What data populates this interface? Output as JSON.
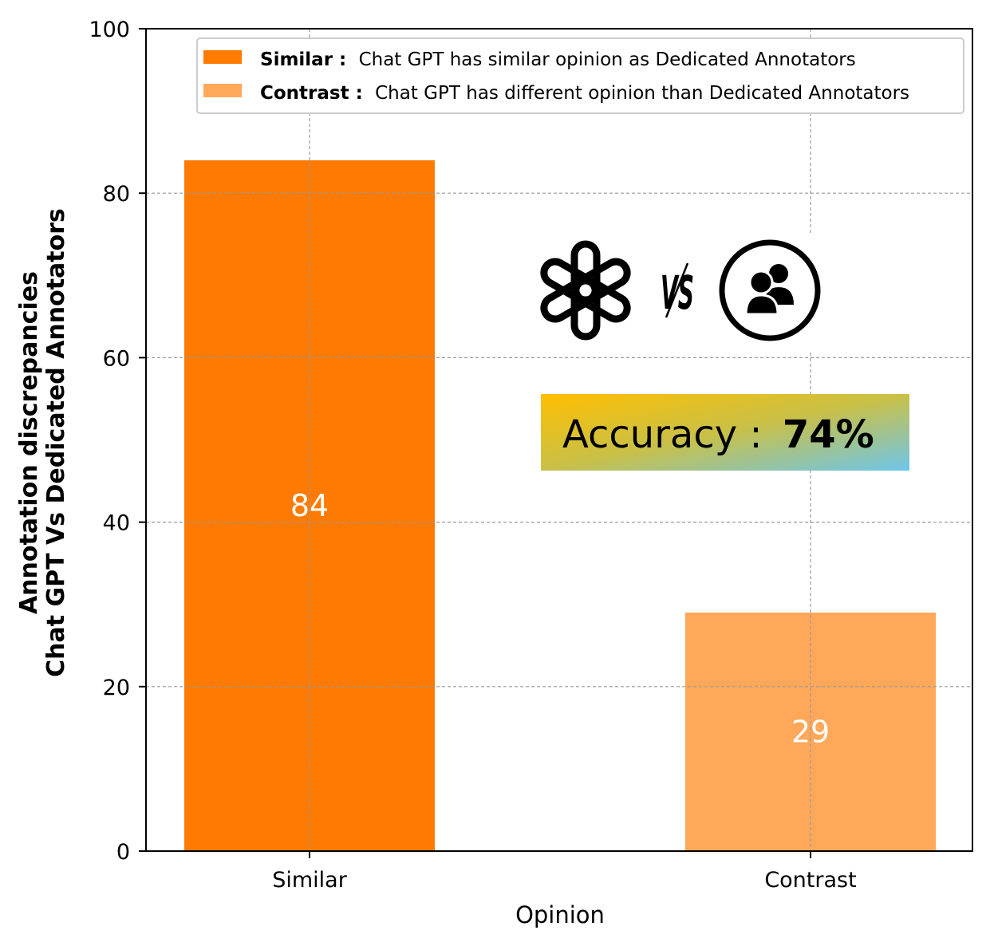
{
  "chart_data": {
    "type": "bar",
    "categories": [
      "Similar",
      "Contrast"
    ],
    "values": [
      84,
      29
    ],
    "colors": [
      "#ff7a00",
      "#ffa85a"
    ],
    "data_labels": [
      "84",
      "29"
    ],
    "xlabel": "Opinion",
    "ylabel_lines": [
      "Annotation discrepancies",
      "Chat GPT Vs Dedicated Annotators"
    ],
    "ylim": [
      0,
      100
    ],
    "yticks": [
      0,
      20,
      40,
      60,
      80,
      100
    ],
    "grid": true,
    "legend_position": "top-right",
    "legend": [
      {
        "key": "Similar :",
        "desc": "Chat GPT has similar opinion as Dedicated Annotators",
        "color": "#ff7a00"
      },
      {
        "key": "Contrast :",
        "desc": "Chat GPT has different opinion than Dedicated Annotators",
        "color": "#ffa85a"
      }
    ],
    "annotation": {
      "label": "Accuracy :",
      "value": "74%"
    },
    "vs_label": "VS",
    "icons": [
      "openai-logo-icon",
      "users-group-icon"
    ]
  }
}
